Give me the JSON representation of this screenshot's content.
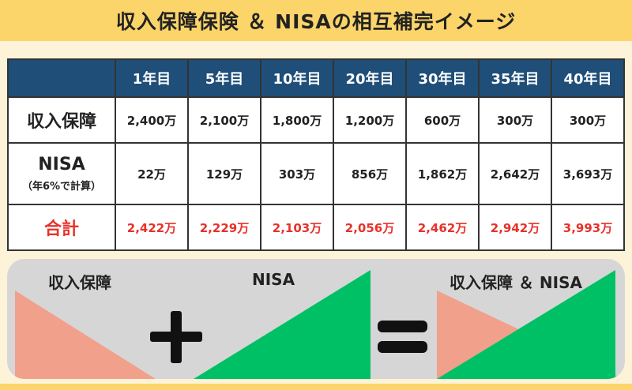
{
  "title": "収入保障保険 ＆ NISAの相互補完イメージ",
  "chart_data": {
    "type": "table",
    "columns": [
      "1年目",
      "5年目",
      "10年目",
      "20年目",
      "30年目",
      "35年目",
      "40年目"
    ],
    "rows": [
      {
        "label": "収入保障",
        "sublabel": "",
        "values": [
          "2,400万",
          "2,100万",
          "1,800万",
          "1,200万",
          "600万",
          "300万",
          "300万"
        ]
      },
      {
        "label": "NISA",
        "sublabel": "（年6%で計算）",
        "values": [
          "22万",
          "129万",
          "303万",
          "856万",
          "1,862万",
          "2,642万",
          "3,693万"
        ]
      },
      {
        "label": "合計",
        "sublabel": "",
        "values": [
          "2,422万",
          "2,229万",
          "2,103万",
          "2,056万",
          "2,462万",
          "2,942万",
          "3,993万"
        ]
      }
    ]
  },
  "diagram": {
    "label_income": "収入保障",
    "label_nisa": "NISA",
    "label_combined": "収入保障 ＆ NISA",
    "colors": {
      "income": "#f1a08c",
      "nisa": "#00c066",
      "operator": "#111111",
      "panel": "#d6d6d6"
    }
  }
}
